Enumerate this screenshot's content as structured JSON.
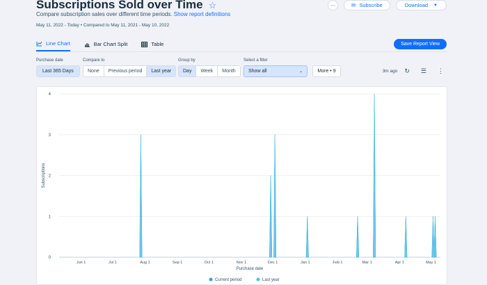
{
  "header": {
    "title": "Subscriptions Sold over Time",
    "subtitle": "Compare subscription sales over different time periods.",
    "definitions_link": "Show report definitions",
    "date_current": "May 11, 2022 - Today",
    "date_compare": "Compared to May 11, 2021 - May 10, 2022",
    "subscribe_label": "Subscribe",
    "download_label": "Download"
  },
  "tabs": [
    {
      "label": "Line Chart",
      "icon": "line-chart-icon",
      "active": true
    },
    {
      "label": "Bar Chart Split",
      "icon": "bar-chart-icon",
      "active": false
    },
    {
      "label": "Table",
      "icon": "table-icon",
      "active": false
    }
  ],
  "save_view_label": "Save Report View",
  "controls": {
    "purchase_date_label": "Purchase date",
    "purchase_date_value": "Last 365 Days",
    "compare_label": "Compare to",
    "compare_options": [
      "None",
      "Previous period",
      "Last year"
    ],
    "compare_selected": "Last year",
    "group_label": "Group by",
    "group_options": [
      "Day",
      "Week",
      "Month"
    ],
    "group_selected": "Day",
    "filter_label": "Select a filter",
    "filter_value": "Show all",
    "more_filters": "More • 9",
    "updated": "3m ago"
  },
  "colors": {
    "accent": "#116dff",
    "current": "#3899ec",
    "last_year": "#4fc3dc"
  },
  "chart_data": {
    "type": "area",
    "xlabel": "Purchase date",
    "ylabel": "Subscriptions",
    "ylim": [
      0,
      4
    ],
    "y_ticks": [
      "0",
      "1",
      "2",
      "3",
      "4"
    ],
    "x_ticks": [
      "Jun 1",
      "Jul 1",
      "Aug 1",
      "Sep 1",
      "Oct 1",
      "Nov 1",
      "Dec 1",
      "Jan 1",
      "Feb 1",
      "Mar 1",
      "Apr 1",
      "May 1"
    ],
    "x_range": [
      "2022-05-11",
      "2023-05-10"
    ],
    "series": [
      {
        "name": "Current period",
        "points": [
          [
            "2022-07-28",
            3
          ],
          [
            "2022-11-29",
            2
          ],
          [
            "2022-12-03",
            3
          ],
          [
            "2023-01-03",
            1
          ],
          [
            "2023-02-20",
            1
          ],
          [
            "2023-03-08",
            4
          ],
          [
            "2023-04-07",
            1
          ],
          [
            "2023-05-03",
            1
          ],
          [
            "2023-05-05",
            1
          ]
        ]
      },
      {
        "name": "Last year",
        "points": [
          [
            "2022-07-28",
            3
          ],
          [
            "2022-11-29",
            2
          ],
          [
            "2022-12-03",
            3
          ],
          [
            "2023-01-03",
            1
          ],
          [
            "2023-02-20",
            1
          ],
          [
            "2023-03-08",
            4
          ],
          [
            "2023-04-07",
            1
          ],
          [
            "2023-05-03",
            1
          ],
          [
            "2023-05-05",
            1
          ]
        ]
      }
    ],
    "legend": "bottom",
    "grid": true
  }
}
